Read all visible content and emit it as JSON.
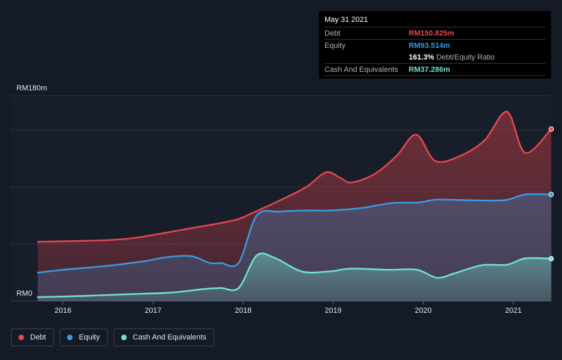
{
  "colors": {
    "debt": "#e5474f",
    "equity": "#3a9ae2",
    "cash": "#6fe3cf",
    "grid": "#2b313d",
    "background": "#151b26"
  },
  "tooltip": {
    "date": "May 31 2021",
    "debt_label": "Debt",
    "debt_value": "RM150.825m",
    "equity_label": "Equity",
    "equity_value": "RM93.514m",
    "ratio_pct": "161.3%",
    "ratio_label": "Debt/Equity Ratio",
    "cash_label": "Cash And Equivalents",
    "cash_value": "RM37.286m"
  },
  "legend": {
    "debt": "Debt",
    "equity": "Equity",
    "cash": "Cash And Equivalents"
  },
  "chart_data": {
    "type": "area",
    "title": "",
    "xlabel": "",
    "ylabel": "",
    "ylim": [
      0,
      180
    ],
    "xlim": [
      2015.5,
      2021.42
    ],
    "y_top_label": "RM180m",
    "y_bottom_label": "RM0",
    "x_ticks": [
      {
        "value": 2016,
        "label": "2016"
      },
      {
        "value": 2017,
        "label": "2017"
      },
      {
        "value": 2018,
        "label": "2018"
      },
      {
        "value": 2019,
        "label": "2019"
      },
      {
        "value": 2020,
        "label": "2020"
      },
      {
        "value": 2021,
        "label": "2021"
      }
    ],
    "grid_y": [
      0,
      50,
      100,
      150,
      180
    ],
    "series": [
      {
        "name": "Debt",
        "key": "debt",
        "points": [
          [
            2015.72,
            52
          ],
          [
            2016.2,
            52.8
          ],
          [
            2016.5,
            53.5
          ],
          [
            2016.75,
            55
          ],
          [
            2017.0,
            58
          ],
          [
            2017.25,
            61.5
          ],
          [
            2017.5,
            65
          ],
          [
            2017.75,
            68.5
          ],
          [
            2017.95,
            72
          ],
          [
            2018.15,
            79
          ],
          [
            2018.4,
            88
          ],
          [
            2018.7,
            100
          ],
          [
            2018.92,
            113
          ],
          [
            2019.08,
            108
          ],
          [
            2019.2,
            104
          ],
          [
            2019.45,
            111
          ],
          [
            2019.7,
            127
          ],
          [
            2019.92,
            146
          ],
          [
            2020.13,
            123
          ],
          [
            2020.4,
            127
          ],
          [
            2020.68,
            141
          ],
          [
            2020.93,
            166
          ],
          [
            2021.13,
            130
          ],
          [
            2021.42,
            150.825
          ]
        ]
      },
      {
        "name": "Equity",
        "key": "equity",
        "points": [
          [
            2015.72,
            25
          ],
          [
            2016.0,
            27.5
          ],
          [
            2016.5,
            31
          ],
          [
            2016.9,
            35
          ],
          [
            2017.15,
            38.5
          ],
          [
            2017.42,
            39.5
          ],
          [
            2017.63,
            33.5
          ],
          [
            2017.75,
            33.5
          ],
          [
            2017.95,
            33.5
          ],
          [
            2018.15,
            75
          ],
          [
            2018.4,
            78.5
          ],
          [
            2018.7,
            79.5
          ],
          [
            2018.95,
            79.5
          ],
          [
            2019.3,
            81.5
          ],
          [
            2019.65,
            86
          ],
          [
            2019.95,
            86.5
          ],
          [
            2020.15,
            89
          ],
          [
            2020.5,
            88.5
          ],
          [
            2020.9,
            88.5
          ],
          [
            2021.13,
            93.5
          ],
          [
            2021.42,
            93.514
          ]
        ]
      },
      {
        "name": "Cash And Equivalents",
        "key": "cash",
        "points": [
          [
            2015.72,
            3.5
          ],
          [
            2016.2,
            4.5
          ],
          [
            2016.7,
            6
          ],
          [
            2017.2,
            7.5
          ],
          [
            2017.55,
            10.5
          ],
          [
            2017.75,
            11.5
          ],
          [
            2017.95,
            11.5
          ],
          [
            2018.15,
            40
          ],
          [
            2018.35,
            38
          ],
          [
            2018.65,
            26
          ],
          [
            2018.95,
            26
          ],
          [
            2019.2,
            28.5
          ],
          [
            2019.6,
            27.5
          ],
          [
            2019.93,
            27.5
          ],
          [
            2020.15,
            20.5
          ],
          [
            2020.35,
            24.5
          ],
          [
            2020.65,
            31.5
          ],
          [
            2020.93,
            32
          ],
          [
            2021.13,
            37.5
          ],
          [
            2021.42,
            37.286
          ]
        ]
      }
    ]
  }
}
